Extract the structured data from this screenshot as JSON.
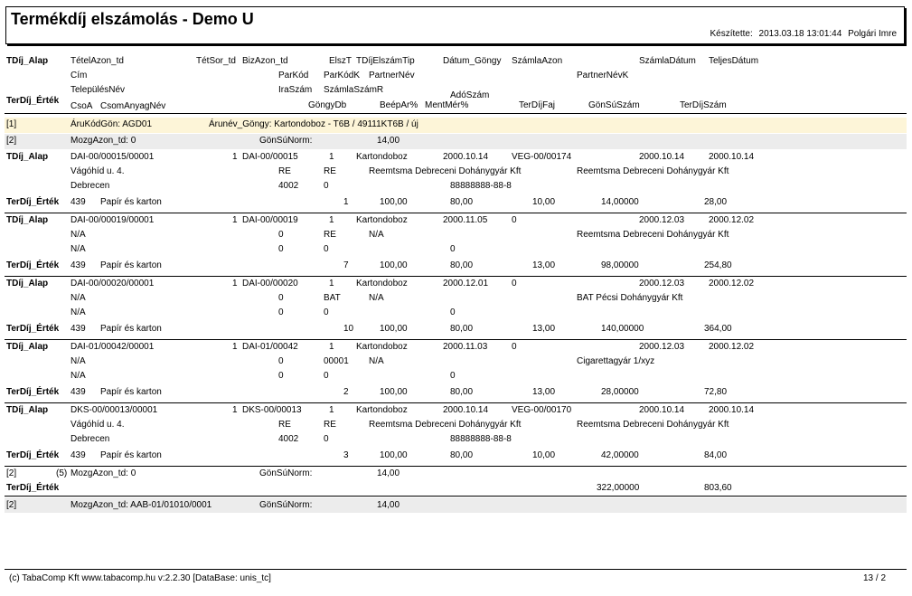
{
  "header": {
    "title": "Termékdíj elszámolás - Demo U",
    "created_label": "Készítette:",
    "created_date": "2013.03.18 13:01:44",
    "created_by": "Polgári Imre"
  },
  "columns": {
    "l1": [
      "TDíj_Alap",
      "TételAzon_td",
      "TétSor_td",
      "BizAzon_td",
      "ElszT",
      "TDíjElszámTip",
      "Dátum_Göngy",
      "SzámlaAzon",
      "SzámlaDátum",
      "TeljesDátum"
    ],
    "l2": [
      "Cím",
      "ParKód",
      "ParKódK",
      "PartnerNév",
      "PartnerNévK"
    ],
    "l3": [
      "TelepülésNév",
      "IraSzám",
      "SzámlaSzámR",
      "AdóSzám"
    ],
    "l4": [
      "TerDíj_Érték",
      "CsoA",
      "CsomAnyagNév",
      "GöngyDb",
      "BeépAr%",
      "MentMér%",
      "TerDíjFaj",
      "GönSúSzám",
      "TerDíjSzám"
    ]
  },
  "group1": {
    "idx": "[1]",
    "key": "ÁruKódGön: AGD01",
    "name": "Árunév_Göngy: Kartondoboz - T6B / 49111KT6B / új"
  },
  "group2": {
    "idx": "[2]",
    "key": "MozgAzon_td: 0",
    "norm_label": "GönSúNorm:",
    "norm": "14,00"
  },
  "records": [
    {
      "a1": [
        "TDíj_Alap",
        "DAI-00/00015/00001",
        "1",
        "DAI-00/00015",
        "1",
        "Kartondoboz",
        "2000.10.14",
        "VEG-00/00174",
        "2000.10.14",
        "2000.10.14"
      ],
      "a2": [
        "Vágóhíd u. 4.",
        "RE",
        "RE",
        "Reemtsma Debreceni Dohánygyár Kft",
        "Reemtsma Debreceni Dohánygyár Kft"
      ],
      "a3": [
        "Debrecen",
        "4002",
        "0",
        "88888888-88-8"
      ],
      "v": [
        "TerDíj_Érték",
        "439",
        "Papír és karton",
        "1",
        "100,00",
        "80,00",
        "10,00",
        "14,00000",
        "28,00"
      ]
    },
    {
      "a1": [
        "TDíj_Alap",
        "DAI-00/00019/00001",
        "1",
        "DAI-00/00019",
        "1",
        "Kartondoboz",
        "2000.11.05",
        "0",
        "2000.12.03",
        "2000.12.02"
      ],
      "a2": [
        "N/A",
        "0",
        "RE",
        "N/A",
        "Reemtsma Debreceni Dohánygyár Kft"
      ],
      "a3": [
        "N/A",
        "0",
        "0",
        "0"
      ],
      "v": [
        "TerDíj_Érték",
        "439",
        "Papír és karton",
        "7",
        "100,00",
        "80,00",
        "13,00",
        "98,00000",
        "254,80"
      ]
    },
    {
      "a1": [
        "TDíj_Alap",
        "DAI-00/00020/00001",
        "1",
        "DAI-00/00020",
        "1",
        "Kartondoboz",
        "2000.12.01",
        "0",
        "2000.12.03",
        "2000.12.02"
      ],
      "a2": [
        "N/A",
        "0",
        "BAT",
        "N/A",
        "BAT Pécsi Dohánygyár Kft"
      ],
      "a3": [
        "N/A",
        "0",
        "0",
        "0"
      ],
      "v": [
        "TerDíj_Érték",
        "439",
        "Papír és karton",
        "10",
        "100,00",
        "80,00",
        "13,00",
        "140,00000",
        "364,00"
      ]
    },
    {
      "a1": [
        "TDíj_Alap",
        "DAI-01/00042/00001",
        "1",
        "DAI-01/00042",
        "1",
        "Kartondoboz",
        "2000.11.03",
        "0",
        "2000.12.03",
        "2000.12.02"
      ],
      "a2": [
        "N/A",
        "0",
        "00001",
        "N/A",
        "Cigarettagyár 1/xyz"
      ],
      "a3": [
        "N/A",
        "0",
        "0",
        "0"
      ],
      "v": [
        "TerDíj_Érték",
        "439",
        "Papír és karton",
        "2",
        "100,00",
        "80,00",
        "13,00",
        "28,00000",
        "72,80"
      ]
    },
    {
      "a1": [
        "TDíj_Alap",
        "DKS-00/00013/00001",
        "1",
        "DKS-00/00013",
        "1",
        "Kartondoboz",
        "2000.10.14",
        "VEG-00/00170",
        "2000.10.14",
        "2000.10.14"
      ],
      "a2": [
        "Vágóhíd u. 4.",
        "RE",
        "RE",
        "Reemtsma Debreceni Dohánygyár Kft",
        "Reemtsma Debreceni Dohánygyár Kft"
      ],
      "a3": [
        "Debrecen",
        "4002",
        "0",
        "88888888-88-8"
      ],
      "v": [
        "TerDíj_Érték",
        "439",
        "Papír és karton",
        "3",
        "100,00",
        "80,00",
        "10,00",
        "42,00000",
        "84,00"
      ]
    }
  ],
  "summary1": {
    "idx": "[2]",
    "count": "(5)",
    "key": "MozgAzon_td: 0",
    "norm_label": "GönSúNorm:",
    "norm": "14,00"
  },
  "summary2": {
    "label": "TerDíj_Érték",
    "gonsu": "322,00000",
    "terdij": "803,60"
  },
  "group3": {
    "idx": "[2]",
    "key": "MozgAzon_td: AAB-01/01010/0001",
    "norm_label": "GönSúNorm:",
    "norm": "14,00"
  },
  "footer": {
    "left": "(c) TabaComp Kft  www.tabacomp.hu  v:2.2.30 [DataBase: unis_tc]",
    "page": "13  / 2"
  }
}
